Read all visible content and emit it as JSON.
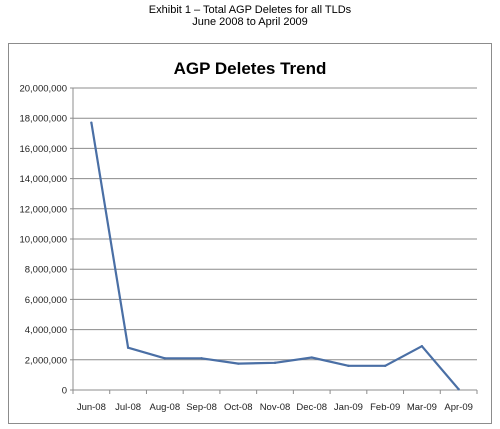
{
  "header": {
    "line1": "Exhibit 1 – Total AGP Deletes for all TLDs",
    "line2": "June 2008 to April 2009"
  },
  "chart_data": {
    "type": "line",
    "title": "AGP Deletes Trend",
    "xlabel": "",
    "ylabel": "",
    "categories": [
      "Jun-08",
      "Jul-08",
      "Aug-08",
      "Sep-08",
      "Oct-08",
      "Nov-08",
      "Dec-08",
      "Jan-09",
      "Feb-09",
      "Mar-09",
      "Apr-09"
    ],
    "values": [
      17700000,
      2800000,
      2100000,
      2100000,
      1750000,
      1800000,
      2150000,
      1600000,
      1600000,
      2900000,
      50000
    ],
    "ylim": [
      0,
      20000000
    ],
    "yticks": [
      "0",
      "2,000,000",
      "4,000,000",
      "6,000,000",
      "8,000,000",
      "10,000,000",
      "12,000,000",
      "14,000,000",
      "16,000,000",
      "18,000,000",
      "20,000,000"
    ],
    "grid": true,
    "legend": "none",
    "line_color": "#4a6fa5",
    "grid_color": "#8c8c8c"
  }
}
